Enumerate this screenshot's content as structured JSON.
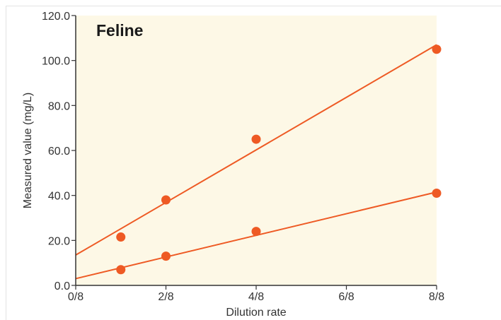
{
  "chart_data": {
    "type": "scatter",
    "title": "Feline",
    "xlabel": "Dilution rate",
    "ylabel": "Measured value (mg/L)",
    "x_ticks": [
      "0/8",
      "2/8",
      "4/8",
      "6/8",
      "8/8"
    ],
    "x_tick_values": [
      0,
      0.25,
      0.5,
      0.75,
      1.0
    ],
    "y_ticks": [
      "0.0",
      "20.0",
      "40.0",
      "60.0",
      "80.0",
      "100.0",
      "120.0"
    ],
    "y_tick_values": [
      0,
      20,
      40,
      60,
      80,
      100,
      120
    ],
    "xlim": [
      0,
      1.0
    ],
    "ylim": [
      0,
      120
    ],
    "grid": false,
    "colors": {
      "plot_background": "#fdf8e6",
      "series": "#ee5a24",
      "axis": "#333333"
    },
    "series": [
      {
        "x": [
          0.125,
          0.25,
          0.5,
          1.0
        ],
        "y": [
          21.5,
          38.0,
          65.0,
          105.0
        ],
        "fit_line": {
          "y_at_x0": 13.5,
          "y_at_x1": 107.0
        }
      },
      {
        "x": [
          0.125,
          0.25,
          0.5,
          1.0
        ],
        "y": [
          7.0,
          13.0,
          24.0,
          41.0
        ],
        "fit_line": {
          "y_at_x0": 3.0,
          "y_at_x1": 41.5
        }
      }
    ]
  }
}
